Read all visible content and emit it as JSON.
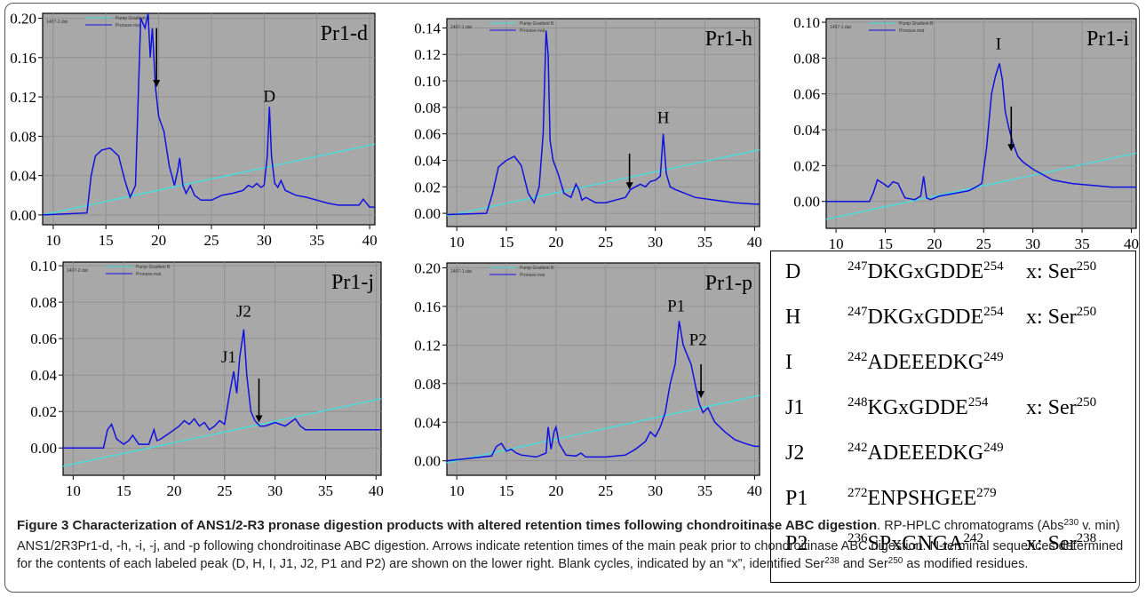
{
  "chart_data": [
    {
      "type": "line",
      "panel_label": "Pr1-d",
      "x_ticks": [
        "10",
        "15",
        "20",
        "25",
        "30",
        "35",
        "40"
      ],
      "y_ticks": [
        "0.00",
        "0.04",
        "0.08",
        "0.12",
        "0.16",
        "0.20"
      ],
      "xlim": [
        9,
        40.5
      ],
      "ylim": [
        -0.01,
        0.205
      ],
      "legend": [
        "Pump Gradient B",
        "Pronase.mat"
      ],
      "file_label": "1407-2.dat",
      "peak_labels": [
        {
          "text": "D",
          "x": 30.5,
          "y": 0.115
        }
      ],
      "arrow": {
        "x": 19.8,
        "y_top": 0.19,
        "y_bottom": 0.13
      },
      "gradient": {
        "x": [
          9,
          40.5
        ],
        "y": [
          0.0,
          0.072
        ]
      },
      "series": [
        {
          "name": "Pronase.mat",
          "x": [
            9,
            13.2,
            13.6,
            14,
            14.6,
            15.4,
            16.2,
            16.8,
            17.3,
            17.8,
            18.3,
            18.7,
            19.0,
            19.2,
            19.4,
            19.7,
            20.0,
            20.5,
            21.0,
            21.5,
            21.8,
            22.0,
            22.3,
            22.6,
            23.0,
            23.4,
            24.0,
            25,
            26,
            27,
            28,
            28.5,
            28.9,
            29.3,
            29.7,
            30.0,
            30.3,
            30.5,
            30.7,
            31.0,
            31.3,
            31.6,
            32,
            33,
            34,
            35,
            36,
            37,
            38,
            39,
            39.4,
            40,
            40.5
          ],
          "y": [
            0.0,
            0.002,
            0.04,
            0.06,
            0.066,
            0.068,
            0.06,
            0.035,
            0.018,
            0.03,
            0.2,
            0.19,
            0.23,
            0.16,
            0.19,
            0.13,
            0.1,
            0.085,
            0.05,
            0.03,
            0.045,
            0.058,
            0.03,
            0.022,
            0.03,
            0.02,
            0.015,
            0.015,
            0.02,
            0.022,
            0.025,
            0.03,
            0.028,
            0.032,
            0.028,
            0.03,
            0.06,
            0.11,
            0.06,
            0.032,
            0.028,
            0.035,
            0.025,
            0.02,
            0.018,
            0.015,
            0.012,
            0.01,
            0.01,
            0.01,
            0.016,
            0.008,
            0.008
          ]
        }
      ]
    },
    {
      "type": "line",
      "panel_label": "Pr1-h",
      "x_ticks": [
        "10",
        "15",
        "20",
        "25",
        "30",
        "35",
        "40"
      ],
      "y_ticks": [
        "0.00",
        "0.02",
        "0.04",
        "0.06",
        "0.08",
        "0.10",
        "0.12",
        "0.14"
      ],
      "xlim": [
        9,
        40.5
      ],
      "ylim": [
        -0.01,
        0.147
      ],
      "legend": [
        "Pump Gradient B",
        "Pronase.mat"
      ],
      "file_label": "1407-1.dat",
      "peak_labels": [
        {
          "text": "H",
          "x": 30.8,
          "y": 0.068
        }
      ],
      "arrow": {
        "x": 27.4,
        "y_top": 0.045,
        "y_bottom": 0.018
      },
      "gradient": {
        "x": [
          9,
          40.5
        ],
        "y": [
          -0.002,
          0.048
        ]
      },
      "series": [
        {
          "name": "Pronase.mat",
          "x": [
            9,
            13,
            13.6,
            14.2,
            15,
            15.8,
            16.5,
            17.2,
            17.8,
            18.3,
            18.7,
            19.0,
            19.2,
            19.4,
            19.7,
            20.2,
            20.8,
            21.5,
            22.0,
            22.3,
            22.6,
            23,
            24,
            25,
            26,
            27,
            27.5,
            28,
            28.5,
            29,
            29.5,
            30,
            30.5,
            30.8,
            31.1,
            31.5,
            32,
            33,
            34,
            36,
            38,
            40,
            40.5
          ],
          "y": [
            -0.001,
            0.0,
            0.015,
            0.035,
            0.04,
            0.043,
            0.036,
            0.015,
            0.008,
            0.02,
            0.06,
            0.138,
            0.12,
            0.055,
            0.04,
            0.03,
            0.015,
            0.012,
            0.022,
            0.018,
            0.01,
            0.012,
            0.008,
            0.008,
            0.01,
            0.012,
            0.018,
            0.02,
            0.022,
            0.02,
            0.024,
            0.025,
            0.028,
            0.06,
            0.03,
            0.02,
            0.018,
            0.015,
            0.012,
            0.01,
            0.008,
            0.007,
            0.007
          ]
        }
      ]
    },
    {
      "type": "line",
      "panel_label": "Pr1-i",
      "x_ticks": [
        "10",
        "15",
        "20",
        "25",
        "30",
        "35",
        "40"
      ],
      "y_ticks": [
        "0.00",
        "0.02",
        "0.04",
        "0.06",
        "0.08",
        "0.10"
      ],
      "xlim": [
        9,
        40.5
      ],
      "ylim": [
        -0.015,
        0.102
      ],
      "legend": [
        "Pump Gradient B",
        "Pronase.mat"
      ],
      "file_label": "1407-1.dat",
      "peak_labels": [
        {
          "text": "I",
          "x": 26.5,
          "y": 0.085
        }
      ],
      "arrow": {
        "x": 27.8,
        "y_top": 0.053,
        "y_bottom": 0.028
      },
      "gradient": {
        "x": [
          9,
          40.5
        ],
        "y": [
          -0.01,
          0.027
        ]
      },
      "series": [
        {
          "name": "Pronase.mat",
          "x": [
            9,
            13.4,
            13.8,
            14.2,
            14.8,
            15.3,
            15.8,
            16.3,
            17,
            18,
            18.6,
            18.9,
            19.2,
            19.6,
            20.5,
            21.5,
            22.5,
            23.5,
            24.2,
            24.8,
            25.3,
            25.8,
            26.2,
            26.6,
            26.9,
            27.2,
            27.6,
            28,
            28.5,
            29,
            30,
            31,
            32,
            33,
            34,
            36,
            38,
            40,
            40.5
          ],
          "y": [
            0.0,
            0.0,
            0.005,
            0.012,
            0.01,
            0.008,
            0.011,
            0.01,
            0.002,
            0.001,
            0.003,
            0.014,
            0.002,
            0.001,
            0.003,
            0.004,
            0.005,
            0.006,
            0.008,
            0.01,
            0.03,
            0.06,
            0.07,
            0.077,
            0.068,
            0.05,
            0.04,
            0.032,
            0.025,
            0.022,
            0.018,
            0.015,
            0.012,
            0.011,
            0.01,
            0.009,
            0.008,
            0.008,
            0.008
          ]
        }
      ]
    },
    {
      "type": "line",
      "panel_label": "Pr1-j",
      "x_ticks": [
        "10",
        "15",
        "20",
        "25",
        "30",
        "35",
        "40"
      ],
      "y_ticks": [
        "0.00",
        "0.02",
        "0.04",
        "0.06",
        "0.08",
        "0.10"
      ],
      "xlim": [
        9,
        40.5
      ],
      "ylim": [
        -0.015,
        0.102
      ],
      "legend": [
        "Pump Gradient B",
        "Pronase.mat"
      ],
      "file_label": "1407-2.dat",
      "peak_labels": [
        {
          "text": "J1",
          "x": 25.4,
          "y": 0.047
        },
        {
          "text": "J2",
          "x": 26.9,
          "y": 0.072
        }
      ],
      "arrow": {
        "x": 28.4,
        "y_top": 0.038,
        "y_bottom": 0.014
      },
      "gradient": {
        "x": [
          9,
          40.5
        ],
        "y": [
          -0.01,
          0.027
        ]
      },
      "series": [
        {
          "name": "Pronase.mat",
          "x": [
            9,
            13,
            13.4,
            13.8,
            14.3,
            15,
            15.5,
            15.9,
            16.5,
            17.5,
            18,
            18.3,
            18.7,
            19.5,
            20.5,
            21,
            21.5,
            22,
            22.5,
            23,
            23.5,
            24,
            24.5,
            25,
            25.5,
            25.9,
            26.2,
            26.5,
            26.9,
            27.2,
            27.6,
            28,
            28.5,
            29,
            30,
            31,
            32,
            32.5,
            33,
            34,
            36,
            38,
            40,
            40.5
          ],
          "y": [
            0.0,
            0.0,
            0.01,
            0.013,
            0.005,
            0.002,
            0.004,
            0.007,
            0.002,
            0.002,
            0.01,
            0.004,
            0.005,
            0.008,
            0.012,
            0.015,
            0.013,
            0.016,
            0.012,
            0.014,
            0.01,
            0.012,
            0.015,
            0.013,
            0.03,
            0.042,
            0.03,
            0.05,
            0.065,
            0.04,
            0.02,
            0.015,
            0.012,
            0.012,
            0.014,
            0.012,
            0.016,
            0.012,
            0.01,
            0.01,
            0.01,
            0.01,
            0.01,
            0.01
          ]
        }
      ]
    },
    {
      "type": "line",
      "panel_label": "Pr1-p",
      "x_ticks": [
        "10",
        "15",
        "20",
        "25",
        "30",
        "35",
        "40"
      ],
      "y_ticks": [
        "0.00",
        "0.04",
        "0.08",
        "0.12",
        "0.16",
        "0.20"
      ],
      "xlim": [
        9,
        40.5
      ],
      "ylim": [
        -0.015,
        0.205
      ],
      "legend": [
        "Pump Gradient B",
        "Pronase.mat"
      ],
      "file_label": "1407-1.dat",
      "peak_labels": [
        {
          "text": "P1",
          "x": 32.1,
          "y": 0.155
        },
        {
          "text": "P2",
          "x": 34.3,
          "y": 0.12
        }
      ],
      "arrow": {
        "x": 34.6,
        "y_top": 0.1,
        "y_bottom": 0.065
      },
      "gradient": {
        "x": [
          9,
          40.5
        ],
        "y": [
          -0.002,
          0.068
        ]
      },
      "series": [
        {
          "name": "Pronase.mat",
          "x": [
            9,
            13.5,
            14,
            14.5,
            15,
            15.5,
            16,
            16.5,
            18,
            19,
            19.2,
            19.5,
            19.8,
            20,
            20.3,
            21,
            22,
            22.5,
            23,
            25,
            27,
            28,
            29,
            29.5,
            30,
            30.5,
            31,
            31.5,
            32,
            32.4,
            32.8,
            33.2,
            33.6,
            34,
            34.4,
            34.8,
            35.3,
            36,
            37,
            38,
            39,
            40,
            40.5
          ],
          "y": [
            0.0,
            0.005,
            0.015,
            0.018,
            0.01,
            0.012,
            0.008,
            0.006,
            0.004,
            0.008,
            0.035,
            0.012,
            0.03,
            0.035,
            0.018,
            0.006,
            0.005,
            0.008,
            0.004,
            0.004,
            0.006,
            0.012,
            0.02,
            0.03,
            0.025,
            0.035,
            0.05,
            0.08,
            0.1,
            0.145,
            0.12,
            0.11,
            0.1,
            0.08,
            0.06,
            0.05,
            0.055,
            0.04,
            0.03,
            0.022,
            0.018,
            0.015,
            0.015
          ]
        }
      ]
    }
  ],
  "colors": {
    "trace": "#1010e0",
    "gradient": "#40e0e0",
    "plot_bg": "#a8a8a8",
    "gridline": "#8c8c8c"
  },
  "table": {
    "rows": [
      {
        "peak": "D",
        "start": "247",
        "seq": "DKGxGDDE",
        "end": "254",
        "mod": "x: Ser",
        "mod_sup": "250"
      },
      {
        "peak": "H",
        "start": "247",
        "seq": "DKGxGDDE",
        "end": "254",
        "mod": "x: Ser",
        "mod_sup": "250"
      },
      {
        "peak": "I",
        "start": "242",
        "seq": "ADEEEDKG",
        "end": "249",
        "mod": "",
        "mod_sup": ""
      },
      {
        "peak": "J1",
        "start": "248",
        "seq": "KGxGDDE",
        "end": "254",
        "mod": "x: Ser",
        "mod_sup": "250"
      },
      {
        "peak": "J2",
        "start": "242",
        "seq": "ADEEEDKG",
        "end": "249",
        "mod": "",
        "mod_sup": ""
      },
      {
        "peak": "P1",
        "start": "272",
        "seq": "ENPSHGEE",
        "end": "279",
        "mod": "",
        "mod_sup": ""
      },
      {
        "peak": "P2",
        "start": "236",
        "seq": "SPxGNGA",
        "end": "242",
        "mod": "x: Ser",
        "mod_sup": "238"
      }
    ]
  },
  "caption": {
    "title": "Figure 3 Characterization of ANS1/2-R3 pronase digestion products with altered retention times following chondroitinase ABC digestion",
    "p1": ". RP-HPLC chromatograms (Abs",
    "p1_sup": "230",
    "p2": " v. min) ANS1/2R3Pr1-d, -h, -i, -j, and -p following chondroitinase ABC digestion. Arrows indicate retention times of the main peak prior to chondroitinase ABC digestion. N-terminal sequences determined for the contents of each labeled peak (D, H, I, J1, J2, P1 and P2) are shown on the lower right. Blank cycles, indicated by an “x”, identified Ser",
    "p2_sup": "238",
    "p3": " and Ser",
    "p3_sup": "250",
    "p4": " as modified residues."
  }
}
